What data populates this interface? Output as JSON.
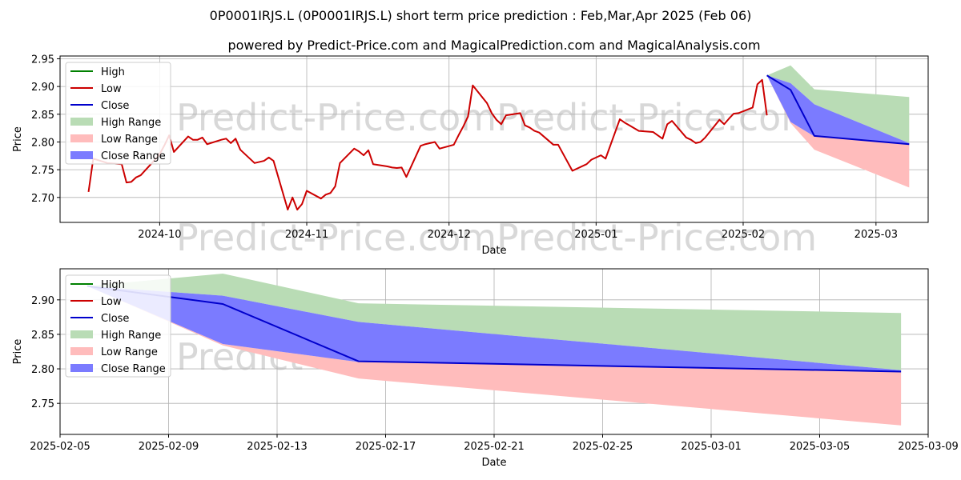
{
  "title": "0P0001IRJS.L (0P0001IRJS.L) short term price prediction : Feb,Mar,Apr 2025 (Feb 06)",
  "subtitle": "powered by Predict-Price.com and MagicalPrediction.com and MagicalAnalysis.com",
  "watermark": "Predict-Price.com",
  "colors": {
    "high": "#008000",
    "low": "#cc0000",
    "close": "#0000cc",
    "high_range": "#b9dcb5",
    "low_range": "#ffbcbc",
    "close_range": "#7b7bff"
  },
  "chart_data": [
    {
      "type": "line",
      "xlabel": "Date",
      "ylabel": "Price",
      "x_type": "date",
      "xlim": [
        "2024-09-10",
        "2025-03-12"
      ],
      "ylim": [
        2.655,
        2.955
      ],
      "yticks": [
        2.7,
        2.75,
        2.8,
        2.85,
        2.9,
        2.95
      ],
      "ytick_labels": [
        "2.70",
        "2.75",
        "2.80",
        "2.85",
        "2.90",
        "2.95"
      ],
      "xticks": [
        "2024-10-01",
        "2024-11-01",
        "2024-12-01",
        "2025-01-01",
        "2025-02-01",
        "2025-03-01"
      ],
      "xtick_labels": [
        "2024-10",
        "2024-11",
        "2024-12",
        "2025-01",
        "2025-02",
        "2025-03"
      ],
      "grid": true,
      "legend": "top-left",
      "legend_entries": [
        "High",
        "Low",
        "Close",
        "High Range",
        "Low Range",
        "Close Range"
      ],
      "series": [
        {
          "name": "Low",
          "style": "line",
          "x": [
            "2024-09-16",
            "2024-09-17",
            "2024-09-20",
            "2024-09-23",
            "2024-09-24",
            "2024-09-25",
            "2024-09-26",
            "2024-09-27",
            "2024-09-30",
            "2024-10-01",
            "2024-10-02",
            "2024-10-03",
            "2024-10-04",
            "2024-10-07",
            "2024-10-08",
            "2024-10-09",
            "2024-10-10",
            "2024-10-11",
            "2024-10-14",
            "2024-10-15",
            "2024-10-16",
            "2024-10-17",
            "2024-10-18",
            "2024-10-21",
            "2024-10-22",
            "2024-10-23",
            "2024-10-24",
            "2024-10-25",
            "2024-10-28",
            "2024-10-29",
            "2024-10-30",
            "2024-10-31",
            "2024-11-01",
            "2024-11-04",
            "2024-11-05",
            "2024-11-06",
            "2024-11-07",
            "2024-11-08",
            "2024-11-11",
            "2024-11-12",
            "2024-11-13",
            "2024-11-14",
            "2024-11-15",
            "2024-11-18",
            "2024-11-19",
            "2024-11-20",
            "2024-11-21",
            "2024-11-22",
            "2024-11-25",
            "2024-11-26",
            "2024-11-27",
            "2024-11-28",
            "2024-11-29",
            "2024-12-02",
            "2024-12-03",
            "2024-12-04",
            "2024-12-05",
            "2024-12-06",
            "2024-12-09",
            "2024-12-10",
            "2024-12-11",
            "2024-12-12",
            "2024-12-13",
            "2024-12-16",
            "2024-12-17",
            "2024-12-18",
            "2024-12-19",
            "2024-12-20",
            "2024-12-23",
            "2024-12-24",
            "2024-12-27",
            "2024-12-30",
            "2024-12-31",
            "2025-01-02",
            "2025-01-03",
            "2025-01-06",
            "2025-01-07",
            "2025-01-08",
            "2025-01-09",
            "2025-01-10",
            "2025-01-13",
            "2025-01-14",
            "2025-01-15",
            "2025-01-16",
            "2025-01-17",
            "2025-01-20",
            "2025-01-21",
            "2025-01-22",
            "2025-01-23",
            "2025-01-24",
            "2025-01-27",
            "2025-01-28",
            "2025-01-29",
            "2025-01-30",
            "2025-01-31",
            "2025-02-03",
            "2025-02-04",
            "2025-02-05",
            "2025-02-06"
          ],
          "y": [
            2.71,
            2.77,
            2.762,
            2.76,
            2.727,
            2.728,
            2.736,
            2.74,
            2.768,
            2.778,
            2.794,
            2.812,
            2.782,
            2.81,
            2.804,
            2.804,
            2.808,
            2.796,
            2.804,
            2.806,
            2.798,
            2.806,
            2.786,
            2.762,
            2.764,
            2.766,
            2.772,
            2.766,
            2.678,
            2.7,
            2.678,
            2.688,
            2.712,
            2.698,
            2.705,
            2.708,
            2.72,
            2.762,
            2.788,
            2.783,
            2.776,
            2.785,
            2.76,
            2.756,
            2.754,
            2.753,
            2.754,
            2.737,
            2.793,
            2.796,
            2.798,
            2.8,
            2.788,
            2.795,
            2.812,
            2.828,
            2.846,
            2.902,
            2.87,
            2.852,
            2.84,
            2.832,
            2.848,
            2.852,
            2.83,
            2.826,
            2.82,
            2.817,
            2.795,
            2.795,
            2.748,
            2.76,
            2.768,
            2.776,
            2.77,
            2.841,
            2.835,
            2.83,
            2.825,
            2.82,
            2.818,
            2.812,
            2.806,
            2.832,
            2.838,
            2.808,
            2.804,
            2.798,
            2.8,
            2.808,
            2.84,
            2.832,
            2.842,
            2.851,
            2.852,
            2.862,
            2.904,
            2.912,
            2.848
          ]
        },
        {
          "name": "High Range",
          "style": "band",
          "x": [
            "2025-02-06",
            "2025-02-11",
            "2025-02-16",
            "2025-03-08"
          ],
          "upper": [
            2.92,
            2.938,
            2.895,
            2.881
          ],
          "lower": [
            2.92,
            2.906,
            2.868,
            2.798
          ]
        },
        {
          "name": "Low Range",
          "style": "band",
          "x": [
            "2025-02-06",
            "2025-02-11",
            "2025-02-16",
            "2025-03-08"
          ],
          "upper": [
            2.92,
            2.836,
            2.81,
            2.796
          ],
          "lower": [
            2.92,
            2.834,
            2.786,
            2.718
          ]
        },
        {
          "name": "Close Range",
          "style": "band",
          "x": [
            "2025-02-06",
            "2025-02-11",
            "2025-02-16",
            "2025-03-08"
          ],
          "upper": [
            2.92,
            2.906,
            2.868,
            2.798
          ],
          "lower": [
            2.92,
            2.836,
            2.81,
            2.796
          ]
        },
        {
          "name": "Close",
          "style": "line",
          "x": [
            "2025-02-06",
            "2025-02-11",
            "2025-02-16",
            "2025-03-08"
          ],
          "y": [
            2.92,
            2.894,
            2.811,
            2.796
          ]
        }
      ]
    },
    {
      "type": "line",
      "xlabel": "Date",
      "ylabel": "Price",
      "x_type": "date",
      "xlim": [
        "2025-02-05",
        "2025-03-09"
      ],
      "ylim": [
        2.705,
        2.945
      ],
      "yticks": [
        2.75,
        2.8,
        2.85,
        2.9
      ],
      "ytick_labels": [
        "2.75",
        "2.80",
        "2.85",
        "2.90"
      ],
      "xticks": [
        "2025-02-05",
        "2025-02-09",
        "2025-02-13",
        "2025-02-17",
        "2025-02-21",
        "2025-02-25",
        "2025-03-01",
        "2025-03-05",
        "2025-03-09"
      ],
      "xtick_labels": [
        "2025-02-05",
        "2025-02-09",
        "2025-02-13",
        "2025-02-17",
        "2025-02-21",
        "2025-02-25",
        "2025-03-01",
        "2025-03-05",
        "2025-03-09"
      ],
      "grid": true,
      "legend": "top-left",
      "legend_entries": [
        "High",
        "Low",
        "Close",
        "High Range",
        "Low Range",
        "Close Range"
      ],
      "series": [
        {
          "name": "High Range",
          "style": "band",
          "x": [
            "2025-02-06",
            "2025-02-11",
            "2025-02-16",
            "2025-03-08"
          ],
          "upper": [
            2.92,
            2.938,
            2.895,
            2.881
          ],
          "lower": [
            2.92,
            2.906,
            2.868,
            2.798
          ]
        },
        {
          "name": "Low Range",
          "style": "band",
          "x": [
            "2025-02-06",
            "2025-02-11",
            "2025-02-16",
            "2025-03-08"
          ],
          "upper": [
            2.92,
            2.836,
            2.81,
            2.796
          ],
          "lower": [
            2.92,
            2.834,
            2.786,
            2.718
          ]
        },
        {
          "name": "Close Range",
          "style": "band",
          "x": [
            "2025-02-06",
            "2025-02-11",
            "2025-02-16",
            "2025-03-08"
          ],
          "upper": [
            2.92,
            2.906,
            2.868,
            2.798
          ],
          "lower": [
            2.92,
            2.836,
            2.81,
            2.796
          ]
        },
        {
          "name": "Close",
          "style": "line",
          "x": [
            "2025-02-06",
            "2025-02-11",
            "2025-02-16",
            "2025-03-08"
          ],
          "y": [
            2.92,
            2.894,
            2.811,
            2.796
          ]
        }
      ]
    }
  ]
}
